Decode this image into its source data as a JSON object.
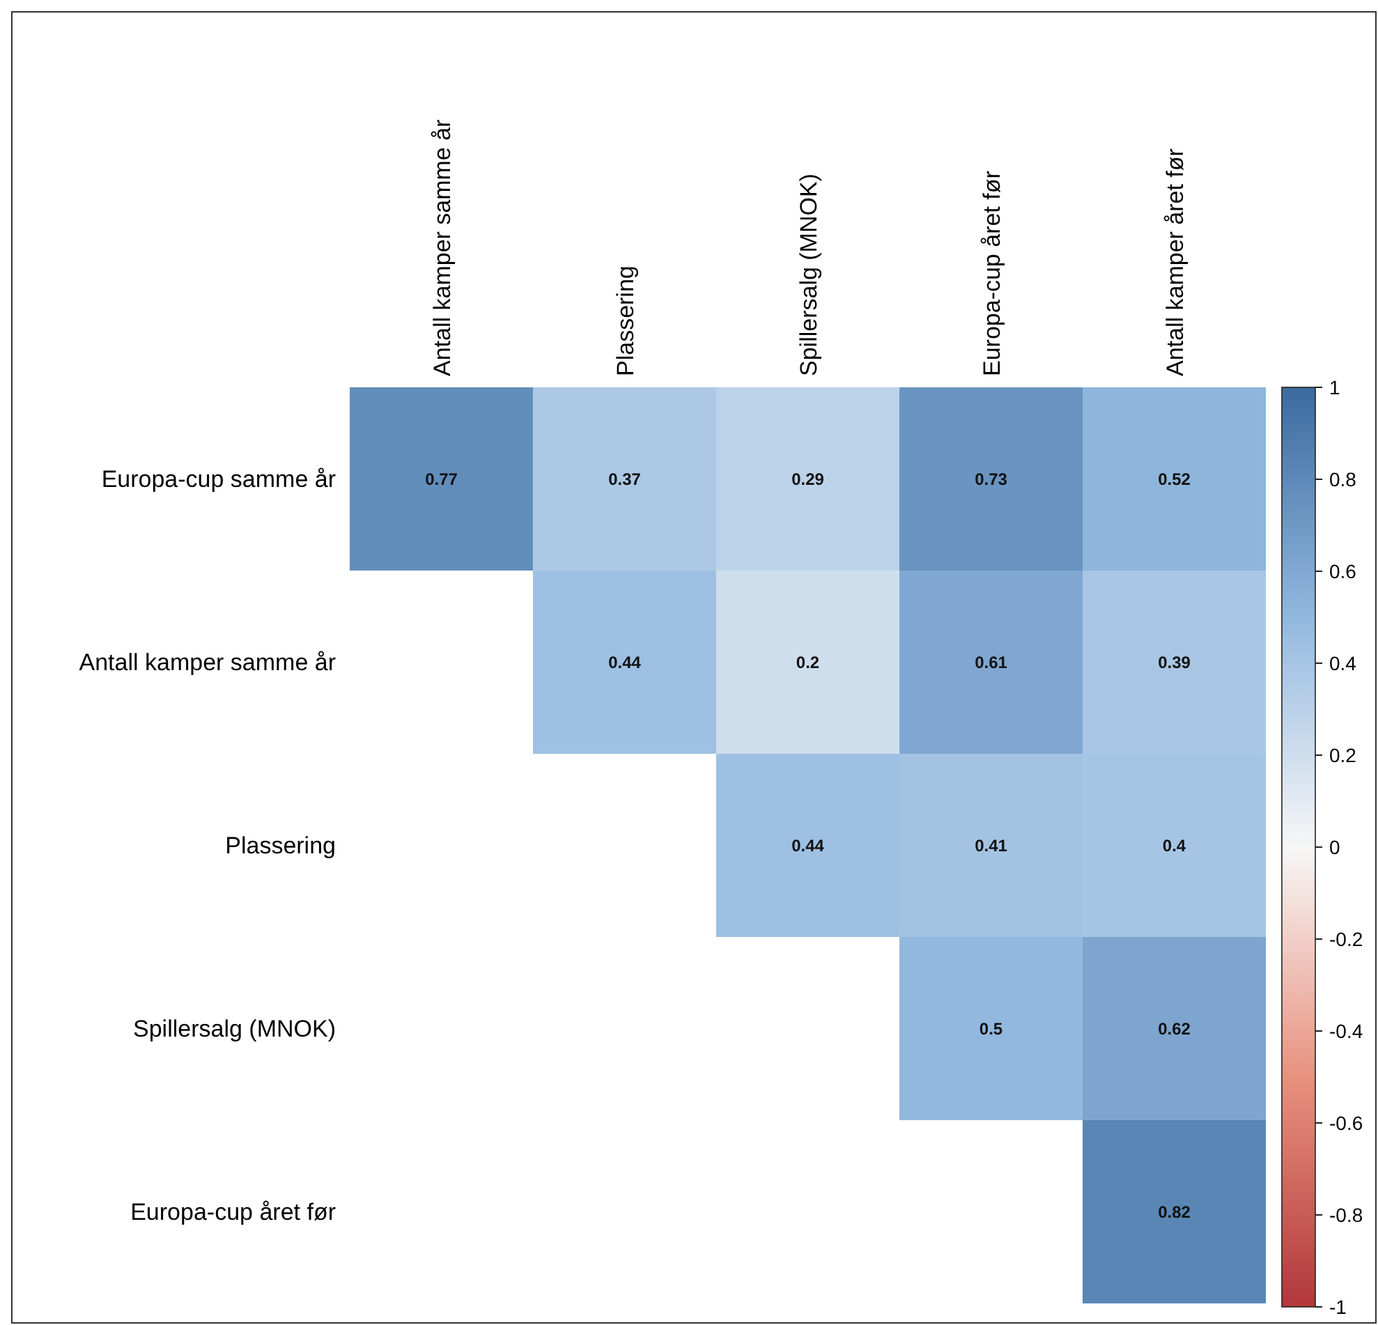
{
  "chart_data": {
    "type": "heatmap",
    "categories": [
      "Antall kamper samme år",
      "Plassering",
      "Spillersalg (MNOK)",
      "Europa-cup året før",
      "Antall kamper året før"
    ],
    "y_categories": [
      "Europa-cup samme år",
      "Antall kamper samme år",
      "Plassering",
      "Spillersalg (MNOK)",
      "Europa-cup året før"
    ],
    "cells": [
      [
        0.77,
        0.37,
        0.29,
        0.73,
        0.52
      ],
      [
        null,
        0.44,
        0.2,
        0.61,
        0.39
      ],
      [
        null,
        null,
        0.44,
        0.41,
        0.4
      ],
      [
        null,
        null,
        null,
        0.5,
        0.62
      ],
      [
        null,
        null,
        null,
        null,
        0.82
      ]
    ],
    "clim": [
      -1,
      1
    ],
    "cticks": [
      -1,
      -0.8,
      -0.6,
      -0.4,
      -0.2,
      0,
      0.2,
      0.4,
      0.6,
      0.8,
      1
    ],
    "data_labels": true
  }
}
